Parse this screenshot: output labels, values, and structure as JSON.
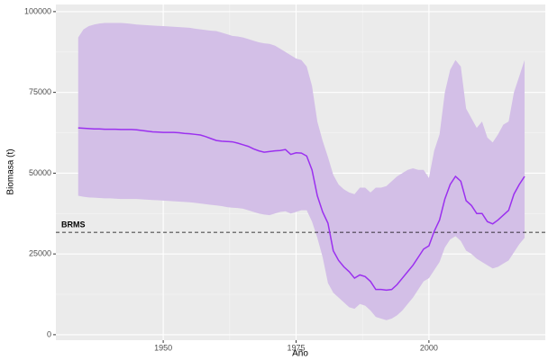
{
  "chart_data": {
    "type": "ribbon-line",
    "x_label": "Año",
    "y_label": "Biomasa (t)",
    "x": [
      1934,
      1935,
      1936,
      1937,
      1938,
      1939,
      1940,
      1941,
      1942,
      1943,
      1944,
      1945,
      1946,
      1947,
      1948,
      1949,
      1950,
      1951,
      1952,
      1953,
      1954,
      1955,
      1956,
      1957,
      1958,
      1959,
      1960,
      1961,
      1962,
      1963,
      1964,
      1965,
      1966,
      1967,
      1968,
      1969,
      1970,
      1971,
      1972,
      1973,
      1974,
      1975,
      1976,
      1977,
      1978,
      1979,
      1980,
      1981,
      1982,
      1983,
      1984,
      1985,
      1986,
      1987,
      1988,
      1989,
      1990,
      1991,
      1992,
      1993,
      1994,
      1995,
      1996,
      1997,
      1998,
      1999,
      2000,
      2001,
      2002,
      2003,
      2004,
      2005,
      2006,
      2007,
      2008,
      2009,
      2010,
      2011,
      2012,
      2013,
      2014,
      2015,
      2016,
      2017,
      2018
    ],
    "values": [
      64000,
      63900,
      63800,
      63700,
      63700,
      63600,
      63600,
      63600,
      63500,
      63500,
      63500,
      63400,
      63200,
      63000,
      62800,
      62700,
      62600,
      62600,
      62600,
      62500,
      62300,
      62200,
      62000,
      61800,
      61300,
      60700,
      60100,
      59900,
      59800,
      59700,
      59300,
      58800,
      58300,
      57500,
      56900,
      56500,
      56700,
      56900,
      57000,
      57300,
      55800,
      56300,
      56200,
      55300,
      51000,
      43000,
      38000,
      34500,
      26000,
      23000,
      21000,
      19500,
      17500,
      18500,
      18000,
      16500,
      14000,
      14000,
      13800,
      14000,
      15500,
      17500,
      19500,
      21500,
      24000,
      26500,
      27500,
      32000,
      35500,
      42000,
      46500,
      49000,
      47500,
      41500,
      40000,
      37500,
      37500,
      35000,
      34300,
      35500,
      37000,
      38500,
      43500,
      46500,
      49000
    ],
    "upper": [
      92000,
      94500,
      95500,
      96000,
      96300,
      96500,
      96500,
      96500,
      96500,
      96400,
      96200,
      96000,
      95900,
      95800,
      95700,
      95600,
      95500,
      95400,
      95300,
      95200,
      95100,
      95000,
      94700,
      94500,
      94300,
      94100,
      94000,
      93500,
      93000,
      92500,
      92300,
      92000,
      91500,
      91000,
      90500,
      90200,
      90000,
      89500,
      88500,
      87500,
      86500,
      85500,
      85000,
      83000,
      77000,
      66000,
      60000,
      55000,
      49500,
      46500,
      45000,
      44000,
      43500,
      45500,
      45500,
      44000,
      45500,
      45500,
      46000,
      47500,
      49000,
      50000,
      51000,
      51500,
      51000,
      51000,
      48500,
      57000,
      62000,
      75000,
      82000,
      85000,
      83000,
      70000,
      67000,
      64000,
      66000,
      61000,
      59500,
      62000,
      65000,
      66000,
      75000,
      80000,
      85000
    ],
    "lower": [
      43000,
      42700,
      42500,
      42400,
      42300,
      42200,
      42200,
      42100,
      42000,
      42000,
      42000,
      42000,
      41900,
      41800,
      41700,
      41600,
      41500,
      41400,
      41300,
      41200,
      41100,
      41000,
      40800,
      40600,
      40400,
      40200,
      40000,
      39800,
      39500,
      39300,
      39200,
      39000,
      38500,
      38000,
      37500,
      37200,
      37000,
      37500,
      38000,
      38200,
      37500,
      38000,
      38500,
      38500,
      35000,
      30000,
      24000,
      16000,
      13000,
      11500,
      10000,
      8500,
      8000,
      9500,
      9000,
      7500,
      5500,
      5000,
      4500,
      5000,
      6000,
      7500,
      9500,
      11500,
      14000,
      16500,
      17500,
      20000,
      22500,
      27000,
      29500,
      30500,
      29000,
      26000,
      25000,
      23500,
      22500,
      21500,
      20500,
      21000,
      22000,
      23000,
      25500,
      28000,
      30000
    ],
    "color": "#9b30ef",
    "band_color": "#d3bfe7",
    "reference_line": {
      "label": "BRMS",
      "value": 31700
    },
    "xlim": [
      1929.8,
      2021.9
    ],
    "ylim": [
      -1700,
      102200
    ],
    "xticks": [
      1950,
      1975,
      2000
    ],
    "yticks": [
      0,
      25000,
      50000,
      75000,
      100000
    ],
    "grid": true,
    "panel_color": "#ebebeb"
  }
}
